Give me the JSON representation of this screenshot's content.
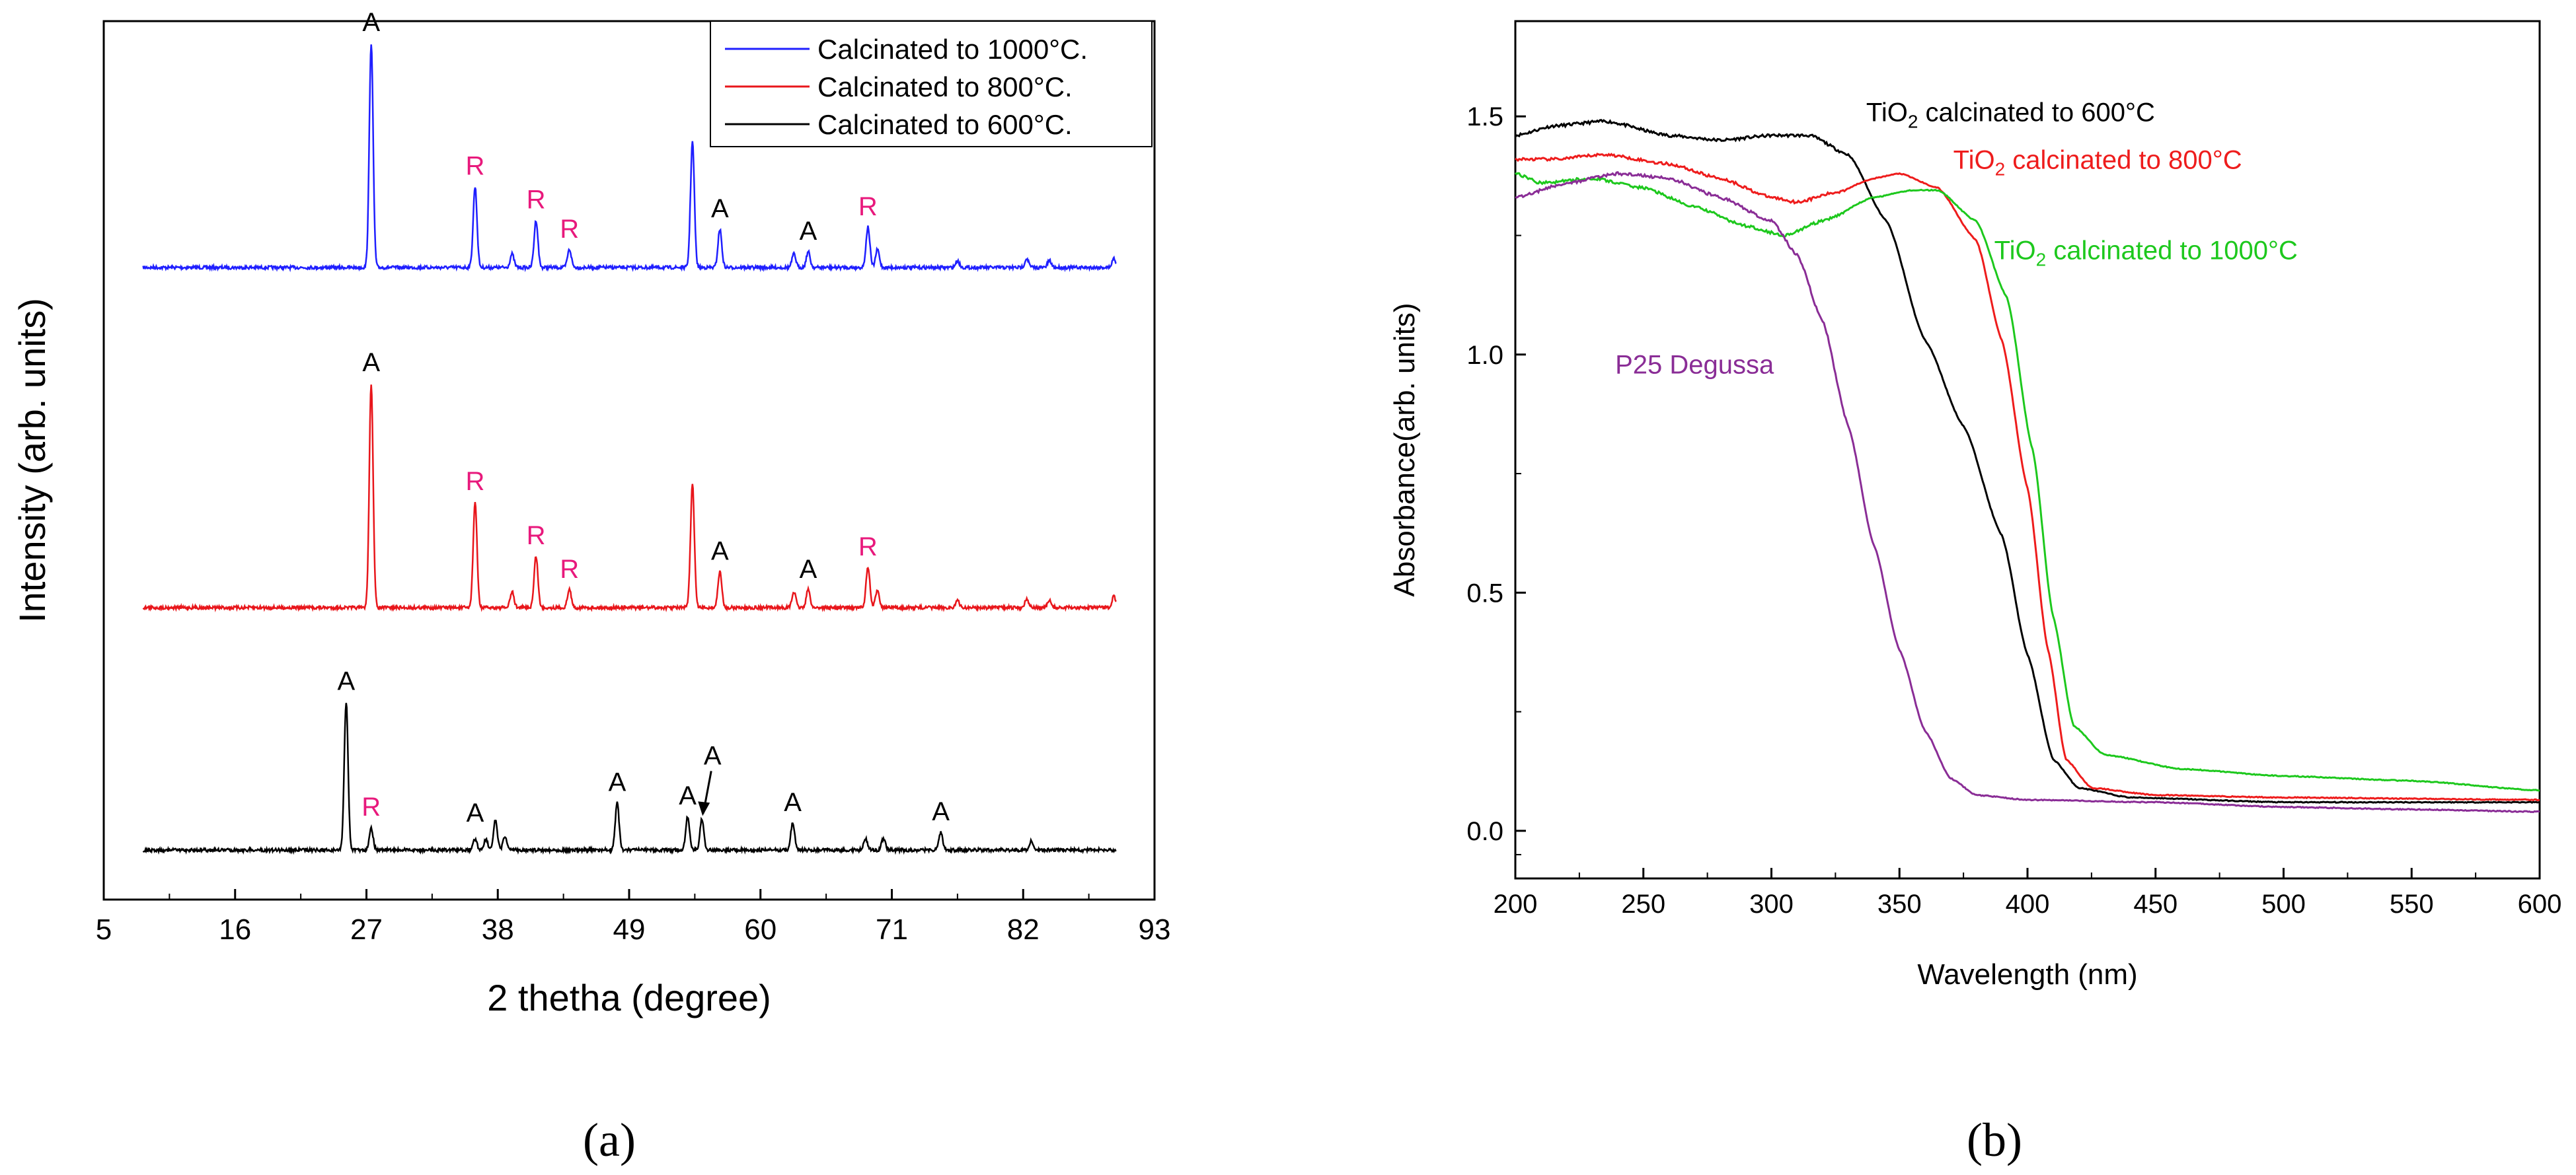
{
  "chart_data": [
    {
      "type": "line",
      "panel_label": "(a)",
      "xlabel": "2 thetha (degree)",
      "ylabel": "Intensity (arb. units)",
      "xlim": [
        5,
        93
      ],
      "xticks": [
        "5",
        "16",
        "27",
        "38",
        "49",
        "60",
        "71",
        "82",
        "93"
      ],
      "yticks": [],
      "legend_position": "top-right",
      "series": [
        {
          "name": "Calcinated to 1000°C.",
          "color": "#1f1fff",
          "offset": 2.0,
          "peaks": [
            [
              27.4,
              1.0
            ],
            [
              36.1,
              0.36
            ],
            [
              39.2,
              0.06
            ],
            [
              41.2,
              0.21
            ],
            [
              44.0,
              0.08
            ],
            [
              54.3,
              0.56
            ],
            [
              56.6,
              0.17
            ],
            [
              62.8,
              0.06
            ],
            [
              64.0,
              0.07
            ],
            [
              69.0,
              0.18
            ],
            [
              69.8,
              0.08
            ],
            [
              76.5,
              0.03
            ],
            [
              82.3,
              0.04
            ],
            [
              84.2,
              0.03
            ],
            [
              89.6,
              0.04
            ]
          ]
        },
        {
          "name": "Calcinated to 800°C.",
          "color": "#e8161b",
          "offset": 1.0,
          "peaks": [
            [
              27.4,
              1.0
            ],
            [
              36.1,
              0.47
            ],
            [
              39.2,
              0.07
            ],
            [
              41.2,
              0.23
            ],
            [
              44.0,
              0.08
            ],
            [
              54.3,
              0.55
            ],
            [
              56.6,
              0.16
            ],
            [
              62.8,
              0.07
            ],
            [
              64.0,
              0.08
            ],
            [
              69.0,
              0.18
            ],
            [
              69.8,
              0.08
            ],
            [
              76.5,
              0.03
            ],
            [
              82.3,
              0.04
            ],
            [
              84.2,
              0.03
            ],
            [
              89.6,
              0.05
            ]
          ]
        },
        {
          "name": "Calcinated to 600°C.",
          "color": "#000000",
          "offset": 0.0,
          "peaks": [
            [
              25.3,
              0.66
            ],
            [
              27.4,
              0.1
            ],
            [
              36.1,
              0.05
            ],
            [
              37.0,
              0.05
            ],
            [
              37.8,
              0.13
            ],
            [
              38.6,
              0.06
            ],
            [
              48.0,
              0.21
            ],
            [
              53.9,
              0.15
            ],
            [
              55.1,
              0.14
            ],
            [
              62.7,
              0.12
            ],
            [
              68.8,
              0.05
            ],
            [
              70.3,
              0.05
            ],
            [
              75.1,
              0.08
            ],
            [
              82.7,
              0.04
            ]
          ]
        }
      ],
      "annotations": [
        {
          "text": "A",
          "x": 27.4,
          "trace": 2,
          "h": 1.0,
          "color": "#000000"
        },
        {
          "text": "R",
          "x": 36.1,
          "trace": 2,
          "h": 0.36,
          "color": "#e8197c"
        },
        {
          "text": "R",
          "x": 41.2,
          "trace": 2,
          "h": 0.21,
          "color": "#e8197c"
        },
        {
          "text": "R",
          "x": 44.0,
          "trace": 2,
          "h": 0.08,
          "color": "#e8197c"
        },
        {
          "text": "A",
          "x": 56.6,
          "trace": 2,
          "h": 0.17,
          "color": "#000000"
        },
        {
          "text": "A",
          "x": 64.0,
          "trace": 2,
          "h": 0.07,
          "color": "#000000"
        },
        {
          "text": "R",
          "x": 69.0,
          "trace": 2,
          "h": 0.18,
          "color": "#e8197c"
        },
        {
          "text": "A",
          "x": 27.4,
          "trace": 1,
          "h": 1.0,
          "color": "#000000"
        },
        {
          "text": "R",
          "x": 36.1,
          "trace": 1,
          "h": 0.47,
          "color": "#e8197c"
        },
        {
          "text": "R",
          "x": 41.2,
          "trace": 1,
          "h": 0.23,
          "color": "#e8197c"
        },
        {
          "text": "R",
          "x": 44.0,
          "trace": 1,
          "h": 0.08,
          "color": "#e8197c"
        },
        {
          "text": "A",
          "x": 56.6,
          "trace": 1,
          "h": 0.16,
          "color": "#000000"
        },
        {
          "text": "A",
          "x": 64.0,
          "trace": 1,
          "h": 0.08,
          "color": "#000000"
        },
        {
          "text": "R",
          "x": 69.0,
          "trace": 1,
          "h": 0.18,
          "color": "#e8197c"
        },
        {
          "text": "A",
          "x": 25.3,
          "trace": 0,
          "h": 0.66,
          "color": "#000000"
        },
        {
          "text": "R",
          "x": 27.4,
          "trace": 0,
          "h": 0.1,
          "color": "#e8197c"
        },
        {
          "text": "A",
          "x": 36.1,
          "trace": 0,
          "h": 0.05,
          "color": "#000000"
        },
        {
          "text": "A",
          "x": 48.0,
          "trace": 0,
          "h": 0.21,
          "color": "#000000"
        },
        {
          "text": "A",
          "x": 53.9,
          "trace": 0,
          "h": 0.15,
          "color": "#000000"
        },
        {
          "text": "A",
          "x": 55.1,
          "trace": 0,
          "h": 0.14,
          "color": "#000000",
          "arrow": true
        },
        {
          "text": "A",
          "x": 62.7,
          "trace": 0,
          "h": 0.12,
          "color": "#000000"
        },
        {
          "text": "A",
          "x": 75.1,
          "trace": 0,
          "h": 0.08,
          "color": "#000000"
        }
      ]
    },
    {
      "type": "line",
      "panel_label": "(b)",
      "xlabel": "Wavelength (nm)",
      "ylabel": "Absorbance(arb. units)",
      "xlim": [
        200,
        600
      ],
      "ylim": [
        -0.1,
        1.7
      ],
      "xticks": [
        200,
        250,
        300,
        350,
        400,
        450,
        500,
        550,
        600
      ],
      "yticks": [
        "0.0",
        "0.5",
        "1.0",
        "1.5"
      ],
      "series": [
        {
          "name": "TiO2 calcinated to 600°C",
          "color": "#000000",
          "points": [
            [
              200,
              1.46
            ],
            [
              215,
              1.48
            ],
            [
              235,
              1.49
            ],
            [
              260,
              1.46
            ],
            [
              280,
              1.45
            ],
            [
              300,
              1.46
            ],
            [
              315,
              1.46
            ],
            [
              330,
              1.42
            ],
            [
              345,
              1.28
            ],
            [
              360,
              1.03
            ],
            [
              375,
              0.85
            ],
            [
              390,
              0.62
            ],
            [
              400,
              0.37
            ],
            [
              410,
              0.15
            ],
            [
              420,
              0.09
            ],
            [
              440,
              0.07
            ],
            [
              500,
              0.06
            ],
            [
              600,
              0.06
            ]
          ]
        },
        {
          "name": "TiO2 calcinated to 800°C",
          "color": "#ee1c1c",
          "points": [
            [
              200,
              1.41
            ],
            [
              215,
              1.41
            ],
            [
              235,
              1.42
            ],
            [
              260,
              1.4
            ],
            [
              280,
              1.37
            ],
            [
              300,
              1.33
            ],
            [
              310,
              1.32
            ],
            [
              325,
              1.34
            ],
            [
              340,
              1.37
            ],
            [
              350,
              1.38
            ],
            [
              365,
              1.35
            ],
            [
              380,
              1.24
            ],
            [
              390,
              1.03
            ],
            [
              400,
              0.72
            ],
            [
              408,
              0.38
            ],
            [
              415,
              0.15
            ],
            [
              425,
              0.09
            ],
            [
              450,
              0.075
            ],
            [
              500,
              0.07
            ],
            [
              600,
              0.065
            ]
          ]
        },
        {
          "name": "TiO2 calcinated to 1000°C",
          "color": "#1dc81d",
          "points": [
            [
              200,
              1.38
            ],
            [
              210,
              1.36
            ],
            [
              230,
              1.37
            ],
            [
              250,
              1.35
            ],
            [
              270,
              1.31
            ],
            [
              290,
              1.27
            ],
            [
              305,
              1.25
            ],
            [
              320,
              1.28
            ],
            [
              340,
              1.33
            ],
            [
              355,
              1.345
            ],
            [
              365,
              1.345
            ],
            [
              380,
              1.28
            ],
            [
              392,
              1.12
            ],
            [
              402,
              0.8
            ],
            [
              410,
              0.45
            ],
            [
              418,
              0.22
            ],
            [
              430,
              0.16
            ],
            [
              460,
              0.13
            ],
            [
              500,
              0.115
            ],
            [
              550,
              0.105
            ],
            [
              600,
              0.085
            ]
          ]
        },
        {
          "name": "P25 Degussa",
          "color": "#8a2d96",
          "points": [
            [
              200,
              1.33
            ],
            [
              220,
              1.36
            ],
            [
              240,
              1.38
            ],
            [
              260,
              1.37
            ],
            [
              280,
              1.33
            ],
            [
              300,
              1.28
            ],
            [
              310,
              1.21
            ],
            [
              320,
              1.07
            ],
            [
              330,
              0.85
            ],
            [
              340,
              0.6
            ],
            [
              350,
              0.38
            ],
            [
              360,
              0.21
            ],
            [
              370,
              0.11
            ],
            [
              380,
              0.075
            ],
            [
              400,
              0.065
            ],
            [
              450,
              0.06
            ],
            [
              500,
              0.05
            ],
            [
              550,
              0.045
            ],
            [
              600,
              0.04
            ]
          ]
        }
      ],
      "annotations": [
        {
          "text": "TiO",
          "sub": "2",
          "rest": " calcinated to 600°C",
          "color": "#000000",
          "x": 337,
          "y": 1.49
        },
        {
          "text": "TiO",
          "sub": "2",
          "rest": " calcinated to 800°C",
          "color": "#ee1c1c",
          "x": 371,
          "y": 1.39
        },
        {
          "text": "TiO",
          "sub": "2",
          "rest": " calcinated to 1000°C",
          "color": "#1dc81d",
          "x": 387,
          "y": 1.2
        },
        {
          "text": "P25 Degussa",
          "color": "#8a2d96",
          "x": 239,
          "y": 0.96
        }
      ]
    }
  ]
}
